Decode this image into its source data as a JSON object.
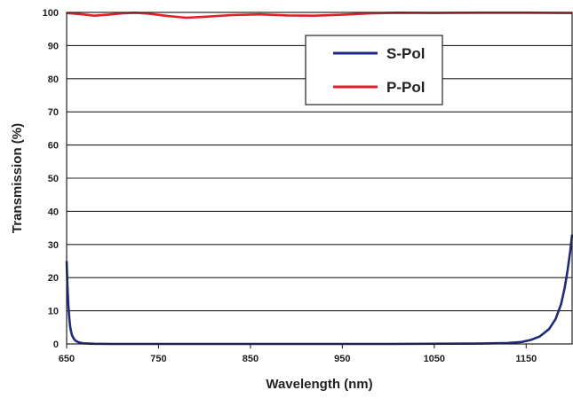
{
  "chart_data": {
    "type": "line",
    "xlabel": "Wavelength (nm)",
    "ylabel": "Transmission (%)",
    "xlim": [
      650,
      1200
    ],
    "ylim": [
      0,
      100
    ],
    "x_ticks": [
      650,
      750,
      850,
      950,
      1050,
      1150
    ],
    "y_ticks": [
      0,
      10,
      20,
      30,
      40,
      50,
      60,
      70,
      80,
      90,
      100
    ],
    "grid": "horizontal",
    "legend_position": "top-right",
    "series": [
      {
        "name": "S-Pol",
        "color": "#1f2a7a",
        "x": [
          650,
          651,
          652,
          653,
          654,
          655,
          656,
          658,
          660,
          663,
          668,
          680,
          700,
          800,
          900,
          1000,
          1100,
          1130,
          1145,
          1155,
          1165,
          1175,
          1182,
          1188,
          1192,
          1195,
          1198,
          1200
        ],
        "y": [
          25,
          17,
          11,
          7.5,
          5,
          3.5,
          2.5,
          1.5,
          0.9,
          0.5,
          0.2,
          0.05,
          0,
          0,
          0,
          0,
          0.1,
          0.3,
          0.6,
          1.2,
          2.3,
          4.5,
          7.5,
          12,
          17,
          22,
          28,
          33
        ]
      },
      {
        "name": "P-Pol",
        "color": "#e0202a",
        "x": [
          650,
          665,
          680,
          695,
          710,
          725,
          740,
          760,
          780,
          800,
          830,
          860,
          890,
          920,
          950,
          980,
          1010,
          1050,
          1100,
          1150,
          1200
        ],
        "y": [
          99.8,
          99.5,
          99.0,
          99.3,
          99.7,
          99.9,
          99.6,
          98.9,
          98.4,
          98.7,
          99.2,
          99.4,
          99.1,
          99.0,
          99.3,
          99.7,
          99.9,
          99.8,
          99.9,
          99.9,
          99.8
        ]
      }
    ]
  }
}
